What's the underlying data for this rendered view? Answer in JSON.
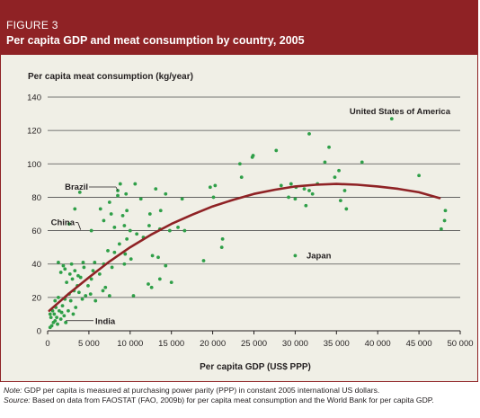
{
  "figure": {
    "label": "FIGURE 3",
    "title": "Per capita GDP and meat consumption by country, 2005"
  },
  "notes": {
    "note_prefix": "Note:",
    "note_text": " GDP per capita is measured at purchasing power parity (PPP) in constant 2005 international US dollars.",
    "source_prefix": "Source:",
    "source_text": " Based on data from FAOSTAT (FAO, 2009b) for per capita meat consumption and the World Bank for per capita GDP."
  },
  "colors": {
    "header": "#8f2225",
    "plot_background": "#f0efe6",
    "points": "#2f9f48",
    "trend": "#8f2225",
    "grid": "#4d4d4d"
  },
  "chart_data": {
    "type": "scatter",
    "xlabel": "Per capita GDP (US$ PPP)",
    "ylabel": "Per capita meat consumption (kg/year)",
    "xlim": [
      0,
      50000
    ],
    "ylim": [
      0,
      140
    ],
    "x_ticks": [
      0,
      5000,
      10000,
      15000,
      20000,
      25000,
      30000,
      35000,
      40000,
      45000,
      50000
    ],
    "x_tick_labels": [
      "0",
      "5 000",
      "10 000",
      "15 000",
      "20 000",
      "25 000",
      "30 000",
      "35 000",
      "40 000",
      "45 000",
      "50 000"
    ],
    "y_ticks": [
      0,
      20,
      40,
      60,
      80,
      100,
      120,
      140
    ],
    "y_tick_labels": [
      "0",
      "20",
      "40",
      "60",
      "80",
      "100",
      "120",
      "140"
    ],
    "grid": "horizontal",
    "annotations": [
      {
        "text": "United States of America",
        "x": 41800,
        "y": 127,
        "anchor": "end",
        "leader": false
      },
      {
        "text": "Brazil",
        "x": 8500,
        "y": 84,
        "anchor": "end",
        "leader": true
      },
      {
        "text": "China",
        "x": 4000,
        "y": 60,
        "anchor": "end",
        "leader": true
      },
      {
        "text": "Japan",
        "x": 30500,
        "y": 45,
        "anchor": "start",
        "leader": false
      },
      {
        "text": "India",
        "x": 2200,
        "y": 5,
        "anchor": "start",
        "leader": true
      }
    ],
    "trend": {
      "name": "",
      "points": [
        [
          200,
          12
        ],
        [
          2500,
          22
        ],
        [
          5000,
          32
        ],
        [
          7500,
          41.5
        ],
        [
          10000,
          50
        ],
        [
          12500,
          57.5
        ],
        [
          15000,
          64
        ],
        [
          17500,
          69.5
        ],
        [
          20000,
          74.5
        ],
        [
          22500,
          78.5
        ],
        [
          25000,
          82
        ],
        [
          27500,
          84.5
        ],
        [
          30000,
          86.5
        ],
        [
          32500,
          87.5
        ],
        [
          35000,
          88
        ],
        [
          37500,
          87.5
        ],
        [
          40000,
          86.5
        ],
        [
          42500,
          85
        ],
        [
          45000,
          83
        ],
        [
          47500,
          79.5
        ]
      ]
    },
    "points": [
      [
        300,
        2
      ],
      [
        500,
        3
      ],
      [
        700,
        5
      ],
      [
        900,
        6
      ],
      [
        1100,
        8
      ],
      [
        400,
        8
      ],
      [
        800,
        10
      ],
      [
        1200,
        4
      ],
      [
        1400,
        12
      ],
      [
        600,
        12
      ],
      [
        1000,
        14
      ],
      [
        1600,
        7
      ],
      [
        2000,
        9
      ],
      [
        1800,
        15
      ],
      [
        2200,
        5
      ],
      [
        900,
        18
      ],
      [
        1300,
        20
      ],
      [
        2100,
        19
      ],
      [
        300,
        10
      ],
      [
        1700,
        11
      ],
      [
        2500,
        12
      ],
      [
        3100,
        10
      ],
      [
        3400,
        14
      ],
      [
        2800,
        18
      ],
      [
        4200,
        19
      ],
      [
        2600,
        22
      ],
      [
        3200,
        24
      ],
      [
        3800,
        23
      ],
      [
        4600,
        21
      ],
      [
        5200,
        22
      ],
      [
        5800,
        18
      ],
      [
        6700,
        24
      ],
      [
        7000,
        26
      ],
      [
        7500,
        21
      ],
      [
        3600,
        27
      ],
      [
        4900,
        27
      ],
      [
        2300,
        29
      ],
      [
        3000,
        31
      ],
      [
        4000,
        32
      ],
      [
        5300,
        31
      ],
      [
        2700,
        34
      ],
      [
        3300,
        36
      ],
      [
        4400,
        38
      ],
      [
        2100,
        37
      ],
      [
        3700,
        33
      ],
      [
        5500,
        36
      ],
      [
        6300,
        34
      ],
      [
        1600,
        35
      ],
      [
        1900,
        39
      ],
      [
        2900,
        40
      ],
      [
        4300,
        41
      ],
      [
        5700,
        41
      ],
      [
        6800,
        40
      ],
      [
        7800,
        38
      ],
      [
        1300,
        41
      ],
      [
        9300,
        40
      ],
      [
        10100,
        43
      ],
      [
        12700,
        45
      ],
      [
        13400,
        44
      ],
      [
        14300,
        39
      ],
      [
        15000,
        29
      ],
      [
        13600,
        31
      ],
      [
        12600,
        26
      ],
      [
        12200,
        28
      ],
      [
        10400,
        21
      ],
      [
        8100,
        47
      ],
      [
        9400,
        46
      ],
      [
        8700,
        52
      ],
      [
        7300,
        48
      ],
      [
        9600,
        55
      ],
      [
        10800,
        58
      ],
      [
        11600,
        56
      ],
      [
        8100,
        62
      ],
      [
        9300,
        63
      ],
      [
        10000,
        60
      ],
      [
        12300,
        63
      ],
      [
        13600,
        61
      ],
      [
        14800,
        60
      ],
      [
        15800,
        62
      ],
      [
        16600,
        60
      ],
      [
        6800,
        66
      ],
      [
        7700,
        70
      ],
      [
        9100,
        69
      ],
      [
        9600,
        72
      ],
      [
        12400,
        70
      ],
      [
        13700,
        72
      ],
      [
        6400,
        73
      ],
      [
        11300,
        79
      ],
      [
        8500,
        81
      ],
      [
        9500,
        82
      ],
      [
        10600,
        88
      ],
      [
        8800,
        88
      ],
      [
        13100,
        85
      ],
      [
        7500,
        77
      ],
      [
        14300,
        82
      ],
      [
        16300,
        79
      ],
      [
        3300,
        73
      ],
      [
        3900,
        83
      ],
      [
        5300,
        60
      ],
      [
        2600,
        64
      ],
      [
        19700,
        86
      ],
      [
        20300,
        87
      ],
      [
        20100,
        80
      ],
      [
        21100,
        50
      ],
      [
        21200,
        55
      ],
      [
        24900,
        105
      ],
      [
        24800,
        104
      ],
      [
        27700,
        108
      ],
      [
        23300,
        100
      ],
      [
        23500,
        92
      ],
      [
        18900,
        42
      ],
      [
        29200,
        80
      ],
      [
        30000,
        79
      ],
      [
        30100,
        86
      ],
      [
        29500,
        88
      ],
      [
        28300,
        87
      ],
      [
        31100,
        85
      ],
      [
        32100,
        82
      ],
      [
        31700,
        84
      ],
      [
        31300,
        75
      ],
      [
        32700,
        88
      ],
      [
        34100,
        110
      ],
      [
        34800,
        92
      ],
      [
        35300,
        96
      ],
      [
        33600,
        101
      ],
      [
        35500,
        78
      ],
      [
        36200,
        73
      ],
      [
        36000,
        84
      ],
      [
        38100,
        101
      ],
      [
        31700,
        118
      ],
      [
        41700,
        127
      ],
      [
        45000,
        93
      ],
      [
        47700,
        61
      ],
      [
        48100,
        66
      ],
      [
        48200,
        72
      ],
      [
        30000,
        45
      ],
      [
        8500,
        84
      ],
      [
        2200,
        5
      ]
    ]
  }
}
